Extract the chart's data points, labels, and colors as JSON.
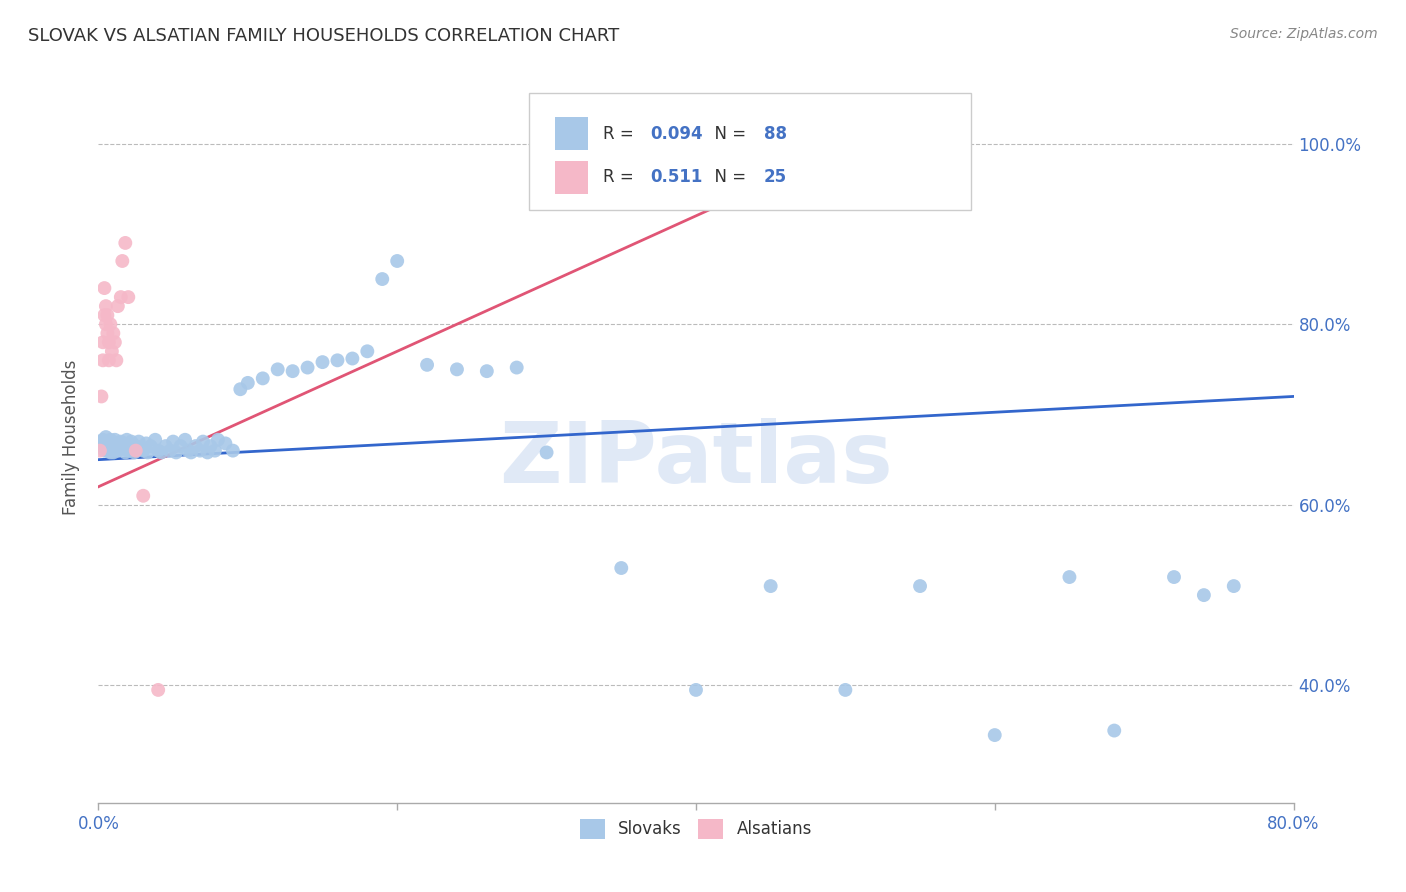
{
  "title": "SLOVAK VS ALSATIAN FAMILY HOUSEHOLDS CORRELATION CHART",
  "source": "Source: ZipAtlas.com",
  "ylabel": "Family Households",
  "slovaks": {
    "color": "#a8c8e8",
    "line_color": "#3366cc",
    "x": [
      0.002,
      0.003,
      0.003,
      0.004,
      0.004,
      0.005,
      0.005,
      0.006,
      0.006,
      0.007,
      0.007,
      0.008,
      0.008,
      0.009,
      0.009,
      0.01,
      0.01,
      0.011,
      0.011,
      0.012,
      0.013,
      0.013,
      0.014,
      0.015,
      0.016,
      0.017,
      0.018,
      0.019,
      0.02,
      0.021,
      0.022,
      0.023,
      0.024,
      0.025,
      0.027,
      0.028,
      0.03,
      0.032,
      0.033,
      0.035,
      0.038,
      0.04,
      0.042,
      0.045,
      0.048,
      0.05,
      0.052,
      0.055,
      0.058,
      0.06,
      0.062,
      0.065,
      0.068,
      0.07,
      0.073,
      0.075,
      0.078,
      0.08,
      0.085,
      0.09,
      0.095,
      0.1,
      0.11,
      0.12,
      0.13,
      0.14,
      0.15,
      0.16,
      0.17,
      0.18,
      0.19,
      0.2,
      0.22,
      0.24,
      0.26,
      0.28,
      0.3,
      0.35,
      0.4,
      0.45,
      0.5,
      0.55,
      0.6,
      0.65,
      0.68,
      0.72,
      0.74,
      0.76
    ],
    "y": [
      0.67,
      0.672,
      0.665,
      0.668,
      0.66,
      0.665,
      0.675,
      0.668,
      0.66,
      0.665,
      0.67,
      0.658,
      0.672,
      0.66,
      0.668,
      0.665,
      0.658,
      0.672,
      0.66,
      0.665,
      0.668,
      0.66,
      0.665,
      0.67,
      0.662,
      0.668,
      0.658,
      0.672,
      0.66,
      0.665,
      0.67,
      0.662,
      0.658,
      0.665,
      0.67,
      0.662,
      0.66,
      0.668,
      0.658,
      0.665,
      0.672,
      0.66,
      0.658,
      0.665,
      0.66,
      0.67,
      0.658,
      0.665,
      0.672,
      0.66,
      0.658,
      0.665,
      0.66,
      0.67,
      0.658,
      0.665,
      0.66,
      0.672,
      0.668,
      0.66,
      0.728,
      0.735,
      0.74,
      0.75,
      0.748,
      0.752,
      0.758,
      0.76,
      0.762,
      0.77,
      0.85,
      0.87,
      0.755,
      0.75,
      0.748,
      0.752,
      0.658,
      0.53,
      0.395,
      0.51,
      0.395,
      0.51,
      0.345,
      0.52,
      0.35,
      0.52,
      0.5,
      0.51
    ]
  },
  "alsatians": {
    "color": "#f5b8c8",
    "line_color": "#e05575",
    "x": [
      0.001,
      0.002,
      0.003,
      0.003,
      0.004,
      0.004,
      0.005,
      0.005,
      0.006,
      0.006,
      0.007,
      0.007,
      0.008,
      0.009,
      0.01,
      0.011,
      0.012,
      0.013,
      0.015,
      0.016,
      0.018,
      0.02,
      0.025,
      0.03,
      0.04
    ],
    "y": [
      0.66,
      0.72,
      0.78,
      0.76,
      0.81,
      0.84,
      0.8,
      0.82,
      0.79,
      0.81,
      0.76,
      0.78,
      0.8,
      0.77,
      0.79,
      0.78,
      0.76,
      0.82,
      0.83,
      0.87,
      0.89,
      0.83,
      0.66,
      0.61,
      0.395
    ]
  },
  "xlim": [
    0.0,
    0.8
  ],
  "ylim": [
    0.27,
    1.08
  ],
  "xtick_positions": [
    0.0,
    0.2,
    0.4,
    0.6,
    0.8
  ],
  "xtick_labels": [
    "0.0%",
    "",
    "",
    "",
    "80.0%"
  ],
  "ytick_positions": [
    0.4,
    0.6,
    0.8,
    1.0
  ],
  "ytick_labels": [
    "40.0%",
    "60.0%",
    "80.0%",
    "100.0%"
  ],
  "blue_line": {
    "x0": 0.0,
    "y0": 0.65,
    "x1": 0.8,
    "y1": 0.72
  },
  "pink_line": {
    "x0": 0.0,
    "y0": 0.62,
    "x1": 0.52,
    "y1": 1.01
  },
  "background_color": "#ffffff",
  "grid_color": "#bbbbbb",
  "watermark": "ZIPatlas",
  "legend_blue_r": "0.094",
  "legend_blue_n": "88",
  "legend_pink_r": "0.511",
  "legend_pink_n": "25"
}
